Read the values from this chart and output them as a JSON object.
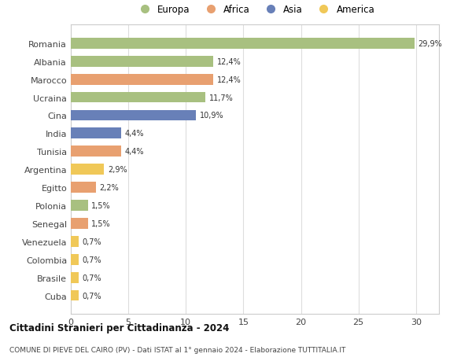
{
  "categories": [
    "Romania",
    "Albania",
    "Marocco",
    "Ucraina",
    "Cina",
    "India",
    "Tunisia",
    "Argentina",
    "Egitto",
    "Polonia",
    "Senegal",
    "Venezuela",
    "Colombia",
    "Brasile",
    "Cuba"
  ],
  "values": [
    29.9,
    12.4,
    12.4,
    11.7,
    10.9,
    4.4,
    4.4,
    2.9,
    2.2,
    1.5,
    1.5,
    0.7,
    0.7,
    0.7,
    0.7
  ],
  "labels": [
    "29,9%",
    "12,4%",
    "12,4%",
    "11,7%",
    "10,9%",
    "4,4%",
    "4,4%",
    "2,9%",
    "2,2%",
    "1,5%",
    "1,5%",
    "0,7%",
    "0,7%",
    "0,7%",
    "0,7%"
  ],
  "colors": [
    "#a8c080",
    "#a8c080",
    "#e8a070",
    "#a8c080",
    "#6880b8",
    "#6880b8",
    "#e8a070",
    "#f0c858",
    "#e8a070",
    "#a8c080",
    "#e8a070",
    "#f0c858",
    "#f0c858",
    "#f0c858",
    "#f0c858"
  ],
  "legend_labels": [
    "Europa",
    "Africa",
    "Asia",
    "America"
  ],
  "legend_colors": [
    "#a8c080",
    "#e8a070",
    "#6880b8",
    "#f0c858"
  ],
  "xlim": [
    0,
    32
  ],
  "xticks": [
    0,
    5,
    10,
    15,
    20,
    25,
    30
  ],
  "title": "Cittadini Stranieri per Cittadinanza - 2024",
  "subtitle": "COMUNE DI PIEVE DEL CAIRO (PV) - Dati ISTAT al 1° gennaio 2024 - Elaborazione TUTTITALIA.IT",
  "bg_color": "#ffffff",
  "bar_height": 0.6
}
